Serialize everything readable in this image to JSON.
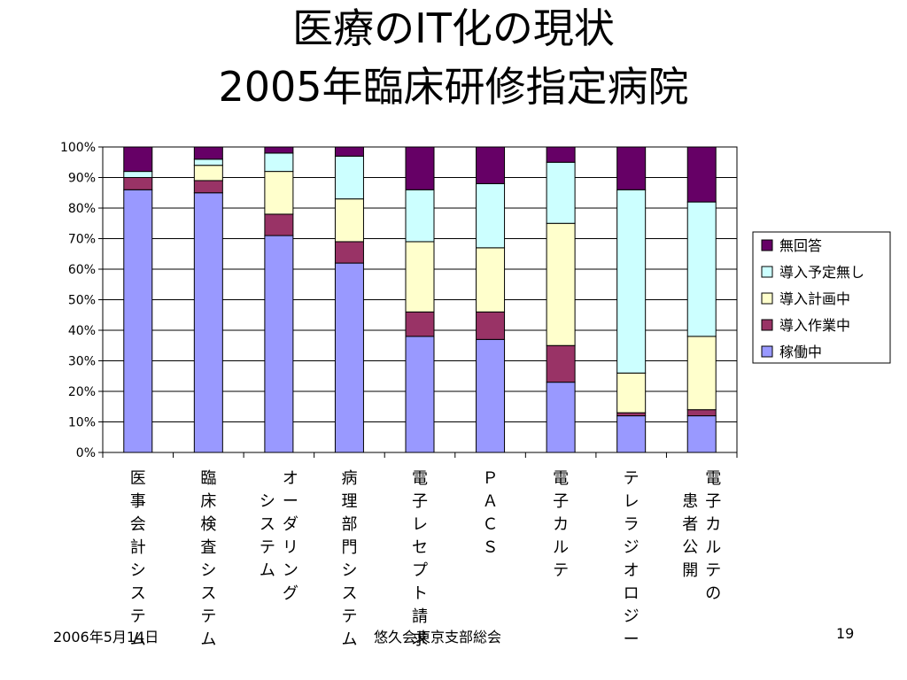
{
  "slide": {
    "title_line1": "医療のIT化の現状",
    "title_line2": "2005年臨床研修指定病院",
    "footer_date": "2006年5月14日",
    "footer_org": "悠久会東京支部総会",
    "page_number": "19"
  },
  "chart_data": {
    "type": "bar",
    "stacked": true,
    "percent": true,
    "ylim": [
      0,
      100
    ],
    "yticks": [
      "0%",
      "10%",
      "20%",
      "30%",
      "40%",
      "50%",
      "60%",
      "70%",
      "80%",
      "90%",
      "100%"
    ],
    "grid": true,
    "legend_position": "right",
    "categories": [
      [
        "医事会計システム"
      ],
      [
        "臨床検査システム"
      ],
      [
        "オーダリング",
        "システム"
      ],
      [
        "病理部門システム"
      ],
      [
        "電子レセプト請求"
      ],
      [
        "ＰＡＣＳ"
      ],
      [
        "電子カルテ"
      ],
      [
        "テレラジオロジー"
      ],
      [
        "電子カルテの",
        "患者公開"
      ]
    ],
    "series": [
      {
        "name": "稼働中",
        "color": "#9999ff",
        "values": [
          86,
          85,
          71,
          62,
          38,
          37,
          23,
          12,
          12
        ]
      },
      {
        "name": "導入作業中",
        "color": "#993366",
        "values": [
          4,
          4,
          7,
          7,
          8,
          9,
          12,
          1,
          2
        ]
      },
      {
        "name": "導入計画中",
        "color": "#ffffcc",
        "values": [
          0,
          5,
          14,
          14,
          23,
          21,
          40,
          13,
          24
        ]
      },
      {
        "name": "導入予定無し",
        "color": "#ccffff",
        "values": [
          2,
          2,
          6,
          14,
          17,
          21,
          20,
          60,
          44
        ]
      },
      {
        "name": "無回答",
        "color": "#660066",
        "values": [
          8,
          4,
          2,
          3,
          14,
          12,
          5,
          14,
          18
        ]
      }
    ]
  }
}
